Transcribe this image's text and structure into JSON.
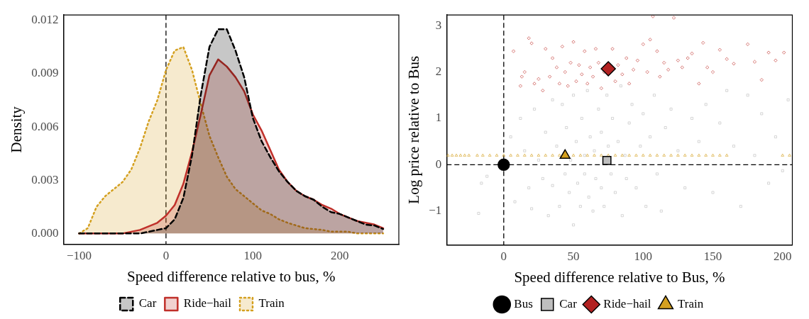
{
  "chart_data": [
    {
      "type": "area",
      "xlabel": "Speed difference relative to bus, %",
      "ylabel": "Density",
      "xlim": [
        -118,
        268
      ],
      "xticks": [
        {
          "value": -100,
          "label": "−100"
        },
        0,
        100,
        200
      ],
      "ylim": [
        -0.0006,
        0.0123
      ],
      "yticks": [
        {
          "value": 0,
          "label": "0.000"
        },
        0.003,
        0.006,
        0.009,
        0.012
      ],
      "x": [
        -100,
        -90,
        -80,
        -70,
        -60,
        -50,
        -40,
        -30,
        -20,
        -10,
        0,
        10,
        20,
        30,
        40,
        50,
        60,
        70,
        80,
        90,
        100,
        110,
        120,
        130,
        140,
        150,
        160,
        170,
        180,
        190,
        200,
        210,
        220,
        230,
        240,
        250
      ],
      "series": [
        {
          "name": "Car",
          "color": "#000000",
          "line_style": "dashed",
          "values": [
            0,
            0,
            0,
            0,
            0,
            0,
            0,
            0,
            0.0001,
            0.0002,
            0.0003,
            0.0008,
            0.002,
            0.0044,
            0.0078,
            0.0105,
            0.0115,
            0.0115,
            0.0103,
            0.0088,
            0.0065,
            0.0052,
            0.0043,
            0.0035,
            0.0029,
            0.0024,
            0.0021,
            0.0019,
            0.0015,
            0.0012,
            0.0011,
            0.0009,
            0.0007,
            0.0005,
            0.00045,
            0.00025
          ]
        },
        {
          "name": "Ride−hail",
          "color": "#c0302a",
          "line_style": "solid",
          "values": [
            0,
            0,
            0,
            0,
            0,
            0,
            0.0001,
            0.0002,
            0.0004,
            0.0006,
            0.001,
            0.0016,
            0.0028,
            0.0046,
            0.0067,
            0.0089,
            0.0098,
            0.0094,
            0.0088,
            0.008,
            0.0067,
            0.0058,
            0.0047,
            0.0036,
            0.0029,
            0.0024,
            0.0021,
            0.0019,
            0.0016,
            0.0014,
            0.0011,
            0.0009,
            0.0007,
            0.0006,
            0.0005,
            0.0003
          ]
        },
        {
          "name": "Train",
          "color": "#d4a020",
          "line_style": "dotted",
          "values": [
            0,
            0.0003,
            0.0015,
            0.0021,
            0.0025,
            0.0029,
            0.0036,
            0.0048,
            0.0063,
            0.0075,
            0.0092,
            0.0103,
            0.0105,
            0.0092,
            0.0073,
            0.0055,
            0.0043,
            0.0032,
            0.0025,
            0.0021,
            0.0017,
            0.0013,
            0.0011,
            0.0008,
            0.0006,
            0.00045,
            0.0003,
            0.00025,
            0.0002,
            0.0001,
            0.0001,
            0.0001,
            0,
            0,
            0,
            0
          ]
        }
      ],
      "ref_lines": [
        {
          "axis": "x",
          "value": 0,
          "line_style": "dashed"
        }
      ],
      "legend": "bottom",
      "grid": false,
      "marker": "none"
    },
    {
      "type": "scatter",
      "xlabel": "Speed difference relative to Bus, %",
      "ylabel": "Log price relative to Bus",
      "xlim": [
        -41,
        207
      ],
      "xticks": [
        0,
        50,
        100,
        150,
        200
      ],
      "ylim": [
        -1.73,
        3.23
      ],
      "yticks": [
        {
          "value": -1,
          "label": "−1"
        },
        0,
        1,
        2,
        3
      ],
      "series": [
        {
          "color": "#bebebe",
          "marker": "square",
          "x": [
            -18,
            -16,
            -12,
            5,
            8,
            12,
            15,
            18,
            20,
            22,
            25,
            28,
            30,
            32,
            35,
            35,
            38,
            40,
            42,
            44,
            45,
            47,
            48,
            50,
            50,
            52,
            53,
            55,
            56,
            58,
            58,
            60,
            61,
            62,
            64,
            65,
            66,
            68,
            70,
            70,
            72,
            74,
            75,
            77,
            78,
            80,
            82,
            84,
            85,
            87,
            88,
            90,
            92,
            95,
            98,
            100,
            102,
            105,
            108,
            110,
            113,
            116,
            120,
            125,
            130,
            135,
            140,
            145,
            150,
            155,
            160,
            165,
            170,
            175,
            180,
            185,
            190,
            195,
            200,
            204
          ],
          "values": [
            -1.05,
            -0.4,
            -0.25,
            0.6,
            -0.8,
            1.0,
            0.3,
            -0.5,
            -0.95,
            1.2,
            0.1,
            -0.3,
            0.7,
            -1.1,
            1.4,
            -0.45,
            0.4,
            -0.9,
            1.3,
            -0.2,
            0.8,
            -0.6,
            0.1,
            1.5,
            -1.3,
            0.5,
            -0.4,
            -0.9,
            1.0,
            0.2,
            -0.2,
            1.6,
            -0.7,
            0.6,
            -1.0,
            0.3,
            -0.3,
            1.2,
            0.7,
            -0.5,
            -0.9,
            1.5,
            0.4,
            -0.2,
            1.0,
            -0.6,
            0.5,
            1.7,
            -1.1,
            0.2,
            -0.3,
            0.9,
            1.3,
            -0.5,
            0.4,
            1.1,
            -0.9,
            0.6,
            1.5,
            -0.2,
            -1.0,
            0.8,
            1.2,
            0.3,
            -0.5,
            1.0,
            0.5,
            1.3,
            -0.6,
            0.9,
            1.6,
            0.4,
            -0.9,
            1.5,
            0.2,
            1.1,
            -0.4,
            0.6,
            -0.13,
            1.4
          ]
        },
        {
          "color": "#c0302a",
          "marker": "diamond",
          "x": [
            7,
            12,
            13,
            15,
            18,
            20,
            22,
            25,
            28,
            30,
            33,
            35,
            38,
            40,
            42,
            44,
            46,
            48,
            50,
            52,
            54,
            56,
            58,
            60,
            62,
            64,
            66,
            68,
            70,
            72,
            78,
            80,
            82,
            85,
            88,
            90,
            93,
            96,
            100,
            103,
            105,
            107,
            110,
            112,
            115,
            118,
            122,
            125,
            128,
            132,
            135,
            140,
            143,
            146,
            150,
            155,
            160,
            165,
            175,
            180,
            185,
            190,
            195,
            201
          ],
          "values": [
            2.45,
            1.7,
            1.9,
            2.0,
            2.73,
            2.62,
            1.75,
            1.85,
            1.6,
            2.5,
            1.9,
            2.3,
            2.1,
            1.75,
            2.55,
            2.0,
            1.7,
            2.2,
            2.65,
            1.8,
            2.15,
            1.95,
            2.45,
            1.75,
            2.1,
            1.9,
            2.5,
            2.2,
            1.65,
            2.0,
            2.5,
            1.8,
            2.15,
            1.95,
            2.3,
            1.75,
            2.05,
            2.25,
            2.6,
            2.0,
            2.7,
            3.2,
            2.45,
            1.9,
            2.2,
            2.05,
            3.17,
            2.25,
            2.1,
            2.3,
            2.4,
            1.75,
            2.63,
            2.1,
            2.0,
            2.48,
            2.28,
            2.18,
            2.6,
            2.22,
            1.83,
            2.42,
            2.25,
            2.42
          ]
        },
        {
          "color": "#d4a020",
          "marker": "triangle",
          "x": [
            -40,
            -37,
            -34,
            -31,
            -28,
            -25,
            -19,
            -15,
            -10,
            -5,
            0,
            5,
            10,
            15,
            20,
            25,
            30,
            35,
            40,
            50,
            55,
            60,
            65,
            70,
            75,
            80,
            85,
            90,
            95,
            100,
            105,
            110,
            115,
            120,
            125,
            130,
            135,
            140,
            145,
            150,
            155,
            160,
            200,
            205
          ],
          "values": [
            0.2,
            0.2,
            0.2,
            0.2,
            0.2,
            0.2,
            0.2,
            0.2,
            0.2,
            0.2,
            0.2,
            0.2,
            0.2,
            0.2,
            0.2,
            0.2,
            0.2,
            0.2,
            0.2,
            0.2,
            0.2,
            0.2,
            0.2,
            0.2,
            0.2,
            0.2,
            0.2,
            0.2,
            0.2,
            0.2,
            0.2,
            0.2,
            0.2,
            0.2,
            0.2,
            0.2,
            0.2,
            0.2,
            0.2,
            0.2,
            0.2,
            0.2,
            0.2,
            0.2
          ]
        },
        {
          "name": "Bus",
          "color": "#000000",
          "marker": "circle",
          "x": [
            0
          ],
          "values": [
            0
          ]
        },
        {
          "name": "Car",
          "color": "#bebebe",
          "marker": "square",
          "x": [
            74
          ],
          "values": [
            0.09
          ]
        },
        {
          "name": "Ride−hail",
          "color": "#b22222",
          "marker": "diamond",
          "x": [
            75
          ],
          "values": [
            2.07
          ]
        },
        {
          "name": "Train",
          "color": "#d4a020",
          "marker": "triangle",
          "x": [
            44
          ],
          "values": [
            0.2
          ]
        }
      ],
      "ref_lines": [
        {
          "axis": "x",
          "value": 0,
          "line_style": "dashed"
        },
        {
          "axis": "y",
          "value": 0,
          "line_style": "dashed"
        }
      ],
      "legend": "bottom",
      "grid": false
    }
  ]
}
